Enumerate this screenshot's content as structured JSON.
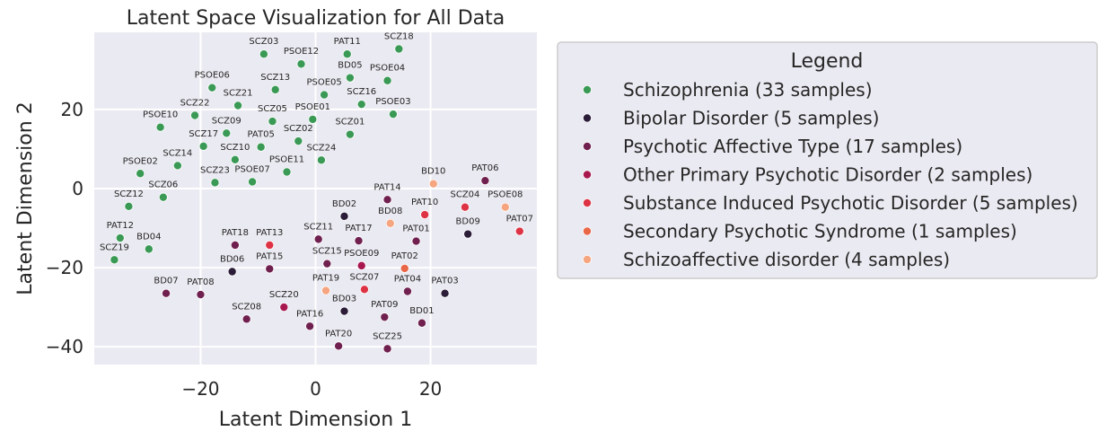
{
  "chart_data": {
    "type": "scatter",
    "title": "Latent Space Visualization for All Data",
    "xlabel": "Latent Dimension 1",
    "ylabel": "Latent Dimension 2",
    "xlim": [
      -38.5,
      38.5
    ],
    "ylim": [
      -44.5,
      39.5
    ],
    "xticks": [
      -20,
      0,
      20
    ],
    "yticks": [
      -40,
      -20,
      0,
      20
    ],
    "xtick_labels": [
      "−20",
      "0",
      "20"
    ],
    "ytick_labels": [
      "−40",
      "−20",
      "0",
      "20"
    ],
    "grid": true,
    "background": "#eaeaf2",
    "legend": {
      "title": "Legend",
      "placement": "outside-right"
    },
    "series": [
      {
        "name": "Schizophrenia (33 samples)",
        "color": "#3a9a55",
        "points": [
          {
            "label": "SCZ03",
            "x": -9,
            "y": 34
          },
          {
            "label": "PSOE12",
            "x": -2.5,
            "y": 31.5
          },
          {
            "label": "PAT11",
            "x": 5.5,
            "y": 34
          },
          {
            "label": "SCZ18",
            "x": 14.5,
            "y": 35.3
          },
          {
            "label": "PSOE06",
            "x": -18,
            "y": 25.5
          },
          {
            "label": "SCZ13",
            "x": -7,
            "y": 25
          },
          {
            "label": "BD05",
            "x": 6,
            "y": 28
          },
          {
            "label": "PSOE04",
            "x": 12.5,
            "y": 27.3
          },
          {
            "label": "PSOE05",
            "x": 1.5,
            "y": 23.7
          },
          {
            "label": "SCZ22",
            "x": -21,
            "y": 18.5
          },
          {
            "label": "SCZ21",
            "x": -13.5,
            "y": 21
          },
          {
            "label": "SCZ16",
            "x": 8,
            "y": 21.3
          },
          {
            "label": "PSOE03",
            "x": 13.5,
            "y": 18.8
          },
          {
            "label": "PSOE10",
            "x": -27,
            "y": 15.5
          },
          {
            "label": "SCZ09",
            "x": -15.5,
            "y": 14
          },
          {
            "label": "SCZ05",
            "x": -7.5,
            "y": 17
          },
          {
            "label": "PSOE01",
            "x": -0.5,
            "y": 17.5
          },
          {
            "label": "SCZ01",
            "x": 6,
            "y": 13.7
          },
          {
            "label": "SCZ17",
            "x": -19.5,
            "y": 10.7
          },
          {
            "label": "PAT05",
            "x": -9.5,
            "y": 10.5
          },
          {
            "label": "SCZ02",
            "x": -3,
            "y": 12
          },
          {
            "label": "SCZ10",
            "x": -14,
            "y": 7.3
          },
          {
            "label": "SCZ24",
            "x": 1,
            "y": 7.2
          },
          {
            "label": "SCZ14",
            "x": -24,
            "y": 5.8
          },
          {
            "label": "PSOE11",
            "x": -5,
            "y": 4.2
          },
          {
            "label": "PSOE02",
            "x": -30.5,
            "y": 3.8
          },
          {
            "label": "SCZ23",
            "x": -17.5,
            "y": 1.5
          },
          {
            "label": "PSOE07",
            "x": -11,
            "y": 1.7
          },
          {
            "label": "SCZ06",
            "x": -26.5,
            "y": -2.2
          },
          {
            "label": "SCZ12",
            "x": -32.5,
            "y": -4.5
          },
          {
            "label": "PAT12",
            "x": -34,
            "y": -12.5
          },
          {
            "label": "BD04",
            "x": -29,
            "y": -15.3
          },
          {
            "label": "SCZ19",
            "x": -35,
            "y": -18
          }
        ]
      },
      {
        "name": "Bipolar Disorder (5 samples)",
        "color": "#2b1c38",
        "points": [
          {
            "label": "BD02",
            "x": 5,
            "y": -7
          },
          {
            "label": "BD09",
            "x": 26.5,
            "y": -11.5
          },
          {
            "label": "BD06",
            "x": -14.5,
            "y": -21
          },
          {
            "label": "BD03",
            "x": 5,
            "y": -31
          },
          {
            "label": "PAT03",
            "x": 22.5,
            "y": -26.5
          }
        ]
      },
      {
        "name": "Psychotic Affective Type (17 samples)",
        "color": "#70204f",
        "points": [
          {
            "label": "PAT06",
            "x": 29.5,
            "y": 2
          },
          {
            "label": "PAT14",
            "x": 12.5,
            "y": -2.8
          },
          {
            "label": "PAT17",
            "x": 7.5,
            "y": -13.2
          },
          {
            "label": "PAT01",
            "x": 17.5,
            "y": -13.3
          },
          {
            "label": "SCZ11",
            "x": 0.5,
            "y": -12.8
          },
          {
            "label": "PAT18",
            "x": -14,
            "y": -14.3
          },
          {
            "label": "PAT15",
            "x": -8,
            "y": -20.3
          },
          {
            "label": "SCZ15",
            "x": 2,
            "y": -19
          },
          {
            "label": "BD07",
            "x": -26,
            "y": -26.5
          },
          {
            "label": "PAT08",
            "x": -20,
            "y": -26.8
          },
          {
            "label": "PAT04",
            "x": 16,
            "y": -26
          },
          {
            "label": "SCZ08",
            "x": -12,
            "y": -33
          },
          {
            "label": "PAT09",
            "x": 12,
            "y": -32.5
          },
          {
            "label": "BD01",
            "x": 18.5,
            "y": -34
          },
          {
            "label": "PAT16",
            "x": -1,
            "y": -34.8
          },
          {
            "label": "PAT20",
            "x": 4,
            "y": -39.8
          },
          {
            "label": "SCZ25",
            "x": 12.5,
            "y": -40.5
          }
        ]
      },
      {
        "name": "Other Primary Psychotic Disorder (2 samples)",
        "color": "#a8184e",
        "points": [
          {
            "label": "SCZ20",
            "x": -5.5,
            "y": -30
          },
          {
            "label": "PSOE09",
            "x": 8,
            "y": -19.5
          }
        ]
      },
      {
        "name": "Substance Induced Psychotic Disorder (5 samples)",
        "color": "#dd3344",
        "points": [
          {
            "label": "PAT10",
            "x": 19,
            "y": -6.6
          },
          {
            "label": "SCZ04",
            "x": 26,
            "y": -4.7
          },
          {
            "label": "PAT07",
            "x": 35.5,
            "y": -10.8
          },
          {
            "label": "PAT13",
            "x": -8,
            "y": -14.3
          },
          {
            "label": "SCZ07",
            "x": 8.5,
            "y": -25.5
          }
        ]
      },
      {
        "name": "Secondary Psychotic Syndrome (1 samples)",
        "color": "#e96747",
        "points": [
          {
            "label": "PAT02",
            "x": 15.5,
            "y": -20.2
          }
        ]
      },
      {
        "name": "Schizoaffective disorder (4 samples)",
        "color": "#f5a57f",
        "points": [
          {
            "label": "BD10",
            "x": 20.5,
            "y": 1.2
          },
          {
            "label": "PSOE08",
            "x": 33,
            "y": -4.7
          },
          {
            "label": "BD08",
            "x": 13,
            "y": -8.8
          },
          {
            "label": "PAT19",
            "x": 1.8,
            "y": -25.8
          }
        ]
      }
    ]
  }
}
